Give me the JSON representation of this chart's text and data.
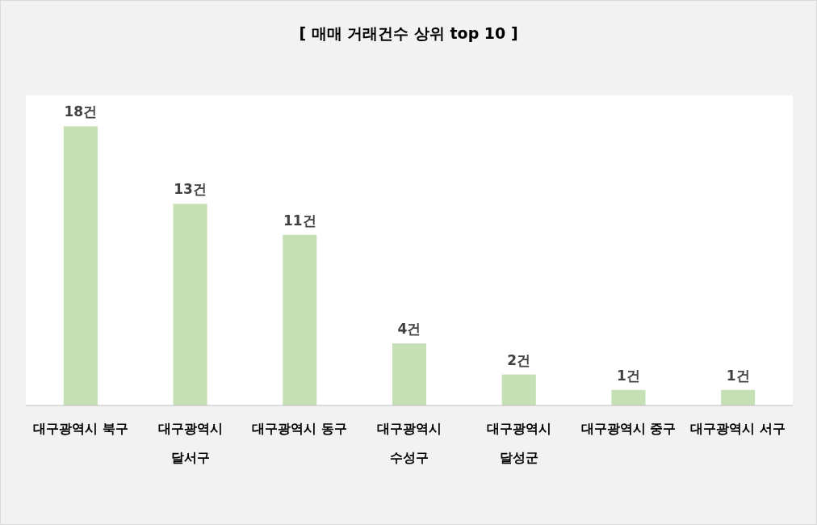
{
  "chart_data": {
    "type": "bar",
    "title": "[ 매매 거래건수 상위 top 10 ]",
    "categories": [
      "대구광역시 북구",
      "대구광역시 달서구",
      "대구광역시 동구",
      "대구광역시 수성구",
      "대구광역시 달성군",
      "대구광역시 중구",
      "대구광역시 서구"
    ],
    "values": [
      18,
      13,
      11,
      4,
      2,
      1,
      1
    ],
    "value_labels": [
      "18건",
      "13건",
      "11건",
      "4건",
      "2건",
      "1건",
      "1건"
    ],
    "color": "#c5e0b4",
    "ylim": [
      0,
      20
    ],
    "tick_labels": "x"
  }
}
